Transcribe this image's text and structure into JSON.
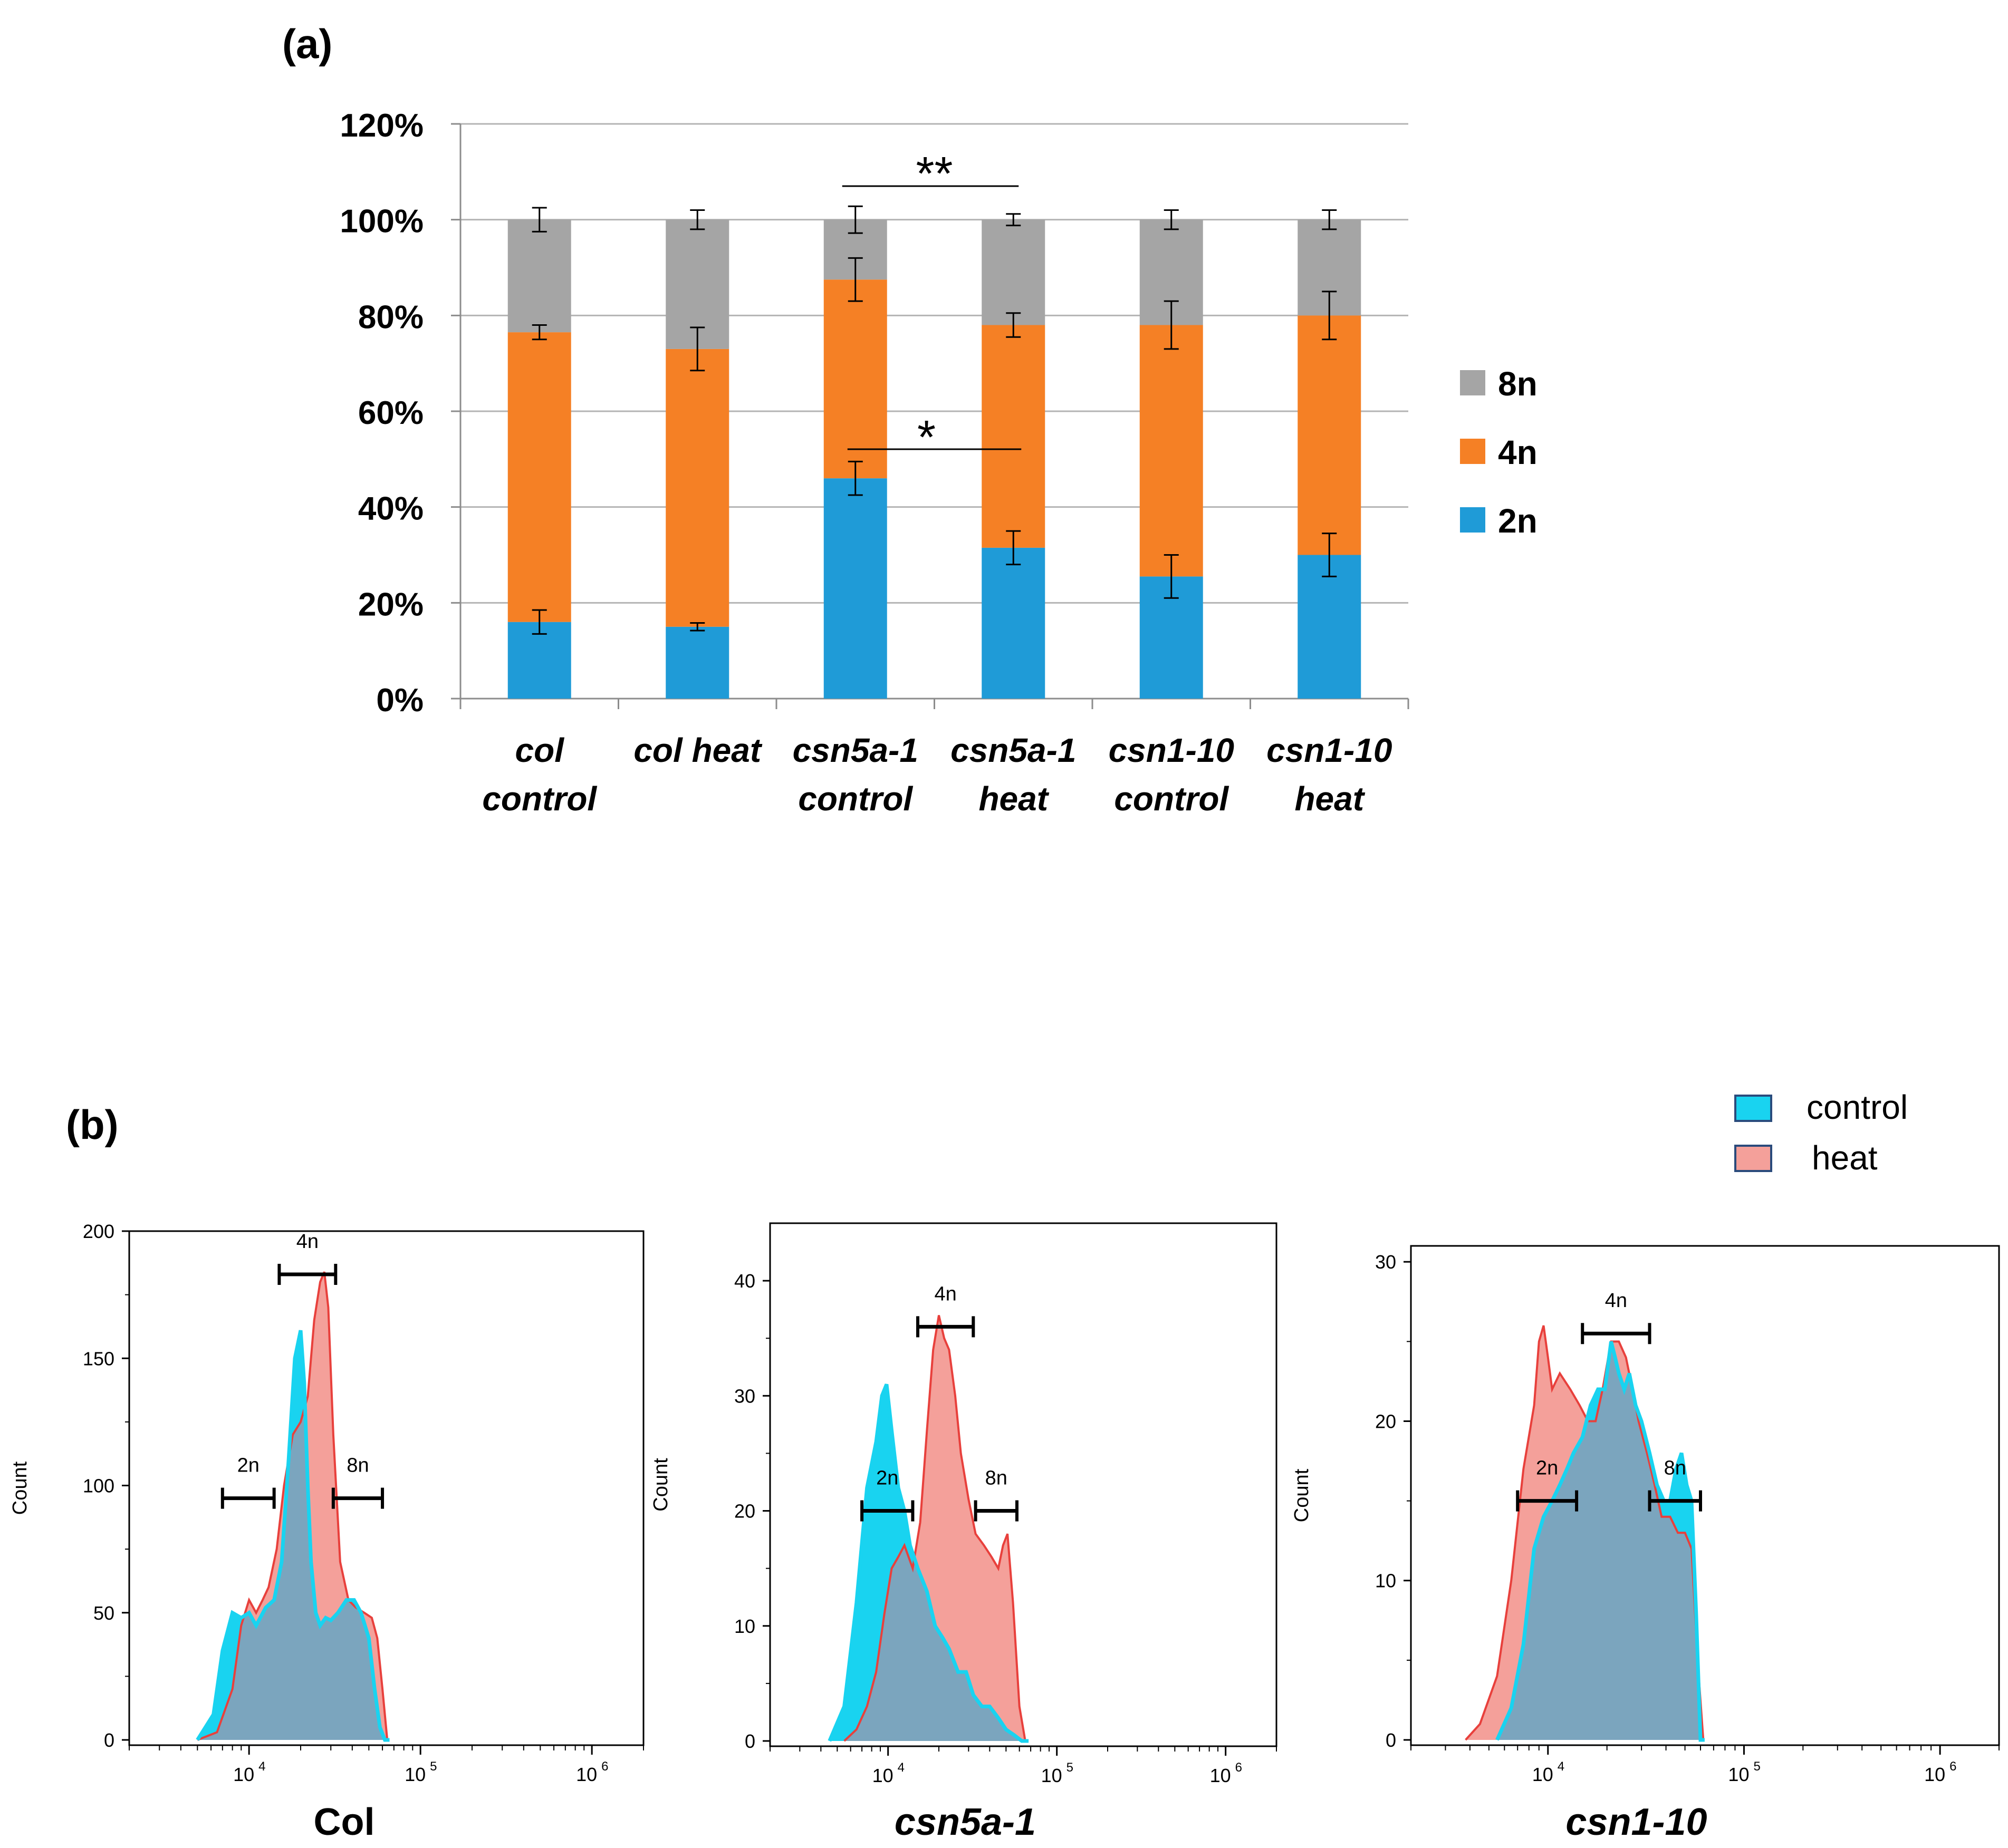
{
  "panel_a": {
    "label": "(a)",
    "significance": {
      "double": "**",
      "single": "*"
    }
  },
  "panel_b": {
    "label": "(b)",
    "legend": {
      "control": "control",
      "heat": "heat"
    },
    "colors": {
      "control": "#19D3F0",
      "heat": "#F4A09A",
      "overlap": "#7BA5BE",
      "heat_line": "#E8403C"
    },
    "y_title": "Count",
    "x_ticks": [
      "10",
      "10",
      "10"
    ],
    "x_tick_exponents": [
      "4",
      "5",
      "6"
    ],
    "gate_labels": [
      "2n",
      "4n",
      "8n"
    ]
  },
  "chart_data": [
    {
      "type": "bar",
      "stacked": true,
      "title": "(a)",
      "categories": [
        [
          "col",
          "control"
        ],
        [
          "col heat"
        ],
        [
          "csn5a-1",
          "control"
        ],
        [
          "csn5a-1",
          "heat"
        ],
        [
          "csn1-10",
          "control"
        ],
        [
          "csn1-10",
          "heat"
        ]
      ],
      "series": [
        {
          "name": "2n",
          "color": "#1F9BD7",
          "values": [
            16,
            15,
            46,
            31.5,
            25.5,
            30
          ],
          "errors": [
            2.5,
            0.8,
            3.5,
            3.5,
            4.5,
            4.5
          ]
        },
        {
          "name": "4n",
          "color": "#F58025",
          "values": [
            60.5,
            58,
            41.5,
            46.5,
            52.5,
            50
          ],
          "errors": [
            1.5,
            4.5,
            4.5,
            2.5,
            5,
            5
          ]
        },
        {
          "name": "8n",
          "color": "#A5A5A5",
          "values": [
            23.5,
            27,
            12.5,
            22,
            22,
            20
          ],
          "errors": [
            2.5,
            2,
            2.8,
            1.2,
            2,
            2
          ]
        }
      ],
      "yticks": [
        "0%",
        "20%",
        "40%",
        "60%",
        "80%",
        "100%",
        "120%"
      ],
      "ylim": [
        0,
        120
      ],
      "legend": [
        "8n",
        "4n",
        "2n"
      ],
      "legend_position": "right",
      "xlabel": "",
      "ylabel": ""
    },
    {
      "type": "area",
      "title": "Col",
      "xscale": "log",
      "xlim": [
        2000,
        2000000
      ],
      "ylim": [
        0,
        200
      ],
      "yticks": [
        "0",
        "50",
        "100",
        "150",
        "200"
      ],
      "ylabel": "Count",
      "series": [
        {
          "name": "control",
          "x": [
            5000,
            6200,
            7000,
            8000,
            9000,
            10000,
            11000,
            12500,
            14000,
            15500,
            17000,
            18500,
            20000,
            21000,
            22000,
            23000,
            24500,
            26000,
            28000,
            30000,
            33000,
            37000,
            41000,
            45000,
            50000,
            54000,
            58000,
            62000,
            66000
          ],
          "y": [
            0,
            10,
            35,
            50,
            48,
            50,
            45,
            52,
            55,
            70,
            110,
            150,
            161,
            140,
            100,
            70,
            50,
            45,
            48,
            47,
            50,
            55,
            55,
            50,
            40,
            20,
            5,
            0,
            0
          ]
        },
        {
          "name": "heat",
          "x": [
            5000,
            6500,
            8000,
            9000,
            10000,
            11000,
            12000,
            13000,
            14500,
            16000,
            18000,
            20000,
            22000,
            24000,
            26000,
            27500,
            29000,
            31000,
            34000,
            38000,
            42000,
            47000,
            52000,
            56000,
            60000,
            64000
          ],
          "y": [
            0,
            3,
            20,
            45,
            55,
            50,
            55,
            60,
            75,
            100,
            120,
            125,
            135,
            165,
            180,
            184,
            170,
            120,
            70,
            55,
            52,
            50,
            48,
            40,
            20,
            0
          ]
        }
      ],
      "gates": [
        {
          "label": "2n",
          "x0": 7000,
          "x1": 14000,
          "y": 95
        },
        {
          "label": "4n",
          "x0": 15000,
          "x1": 32000,
          "y": 183
        },
        {
          "label": "8n",
          "x0": 31000,
          "x1": 60000,
          "y": 95
        }
      ]
    },
    {
      "type": "area",
      "title": "csn5a-1",
      "xscale": "log",
      "xlim": [
        2000,
        2000000
      ],
      "ylim": [
        0,
        45
      ],
      "yticks": [
        "0",
        "10",
        "20",
        "30",
        "40"
      ],
      "ylabel": "Count",
      "series": [
        {
          "name": "control",
          "x": [
            4500,
            5500,
            6500,
            7500,
            8500,
            9200,
            9800,
            10500,
            11500,
            12500,
            13500,
            15000,
            17000,
            19000,
            21000,
            23000,
            26000,
            29000,
            32000,
            36000,
            40000,
            45000,
            50000,
            56000,
            62000,
            68000
          ],
          "y": [
            0,
            3,
            12,
            22,
            26,
            30,
            31,
            27,
            22,
            20,
            17,
            15,
            13,
            10,
            9,
            8,
            6,
            6,
            4,
            3,
            3,
            2,
            1,
            0.5,
            0,
            0
          ]
        },
        {
          "name": "heat",
          "x": [
            5500,
            6500,
            7500,
            8500,
            9500,
            10500,
            11500,
            12500,
            14000,
            15500,
            17000,
            18500,
            20000,
            21500,
            23000,
            25000,
            27000,
            30000,
            33000,
            37000,
            41000,
            45000,
            48000,
            51000,
            55000,
            60000,
            65000
          ],
          "y": [
            0,
            1,
            3,
            6,
            11,
            15,
            16,
            17,
            15,
            19,
            27,
            34,
            37,
            35,
            34,
            30,
            25,
            21,
            18,
            17,
            16,
            15,
            17,
            18,
            12,
            3,
            0
          ]
        }
      ],
      "gates": [
        {
          "label": "2n",
          "x0": 7000,
          "x1": 14000,
          "y": 20
        },
        {
          "label": "4n",
          "x0": 15000,
          "x1": 32000,
          "y": 36
        },
        {
          "label": "8n",
          "x0": 33000,
          "x1": 58000,
          "y": 20
        }
      ]
    },
    {
      "type": "area",
      "title": "csn1-10",
      "xscale": "log",
      "xlim": [
        2000,
        2000000
      ],
      "ylim": [
        0,
        31
      ],
      "yticks": [
        "0",
        "10",
        "20",
        "30"
      ],
      "ylabel": "Count",
      "series": [
        {
          "name": "control",
          "x": [
            5500,
            6500,
            7500,
            8500,
            9500,
            10500,
            11500,
            12500,
            13500,
            15000,
            16500,
            18000,
            19500,
            21000,
            22000,
            23000,
            24500,
            26000,
            28000,
            30000,
            33000,
            36000,
            39000,
            42000,
            45000,
            48000,
            51000,
            54000,
            57000,
            60000,
            63000
          ],
          "y": [
            0,
            2,
            6,
            12,
            14,
            15,
            16,
            17,
            18,
            19,
            21,
            22,
            22,
            25,
            24,
            23,
            22,
            23,
            21,
            20,
            18,
            16,
            15,
            15,
            17,
            18,
            16,
            15,
            8,
            0,
            0
          ]
        },
        {
          "name": "heat",
          "x": [
            3800,
            4500,
            5500,
            6500,
            7500,
            8500,
            9000,
            9500,
            10000,
            10500,
            11500,
            13000,
            14500,
            16000,
            17500,
            19000,
            21000,
            23000,
            25000,
            27000,
            29000,
            32000,
            35000,
            38000,
            42000,
            46000,
            50000,
            54000,
            58000,
            62000
          ],
          "y": [
            0,
            1,
            4,
            10,
            17,
            21,
            25,
            26,
            24,
            22,
            23,
            22,
            21,
            20,
            20,
            22,
            25,
            25,
            24,
            22,
            20,
            18,
            16,
            14,
            14,
            13,
            13,
            12,
            5,
            0
          ]
        }
      ],
      "gates": [
        {
          "label": "2n",
          "x0": 7000,
          "x1": 14000,
          "y": 15
        },
        {
          "label": "4n",
          "x0": 15000,
          "x1": 33000,
          "y": 25.5
        },
        {
          "label": "8n",
          "x0": 33000,
          "x1": 60000,
          "y": 15
        }
      ]
    }
  ]
}
